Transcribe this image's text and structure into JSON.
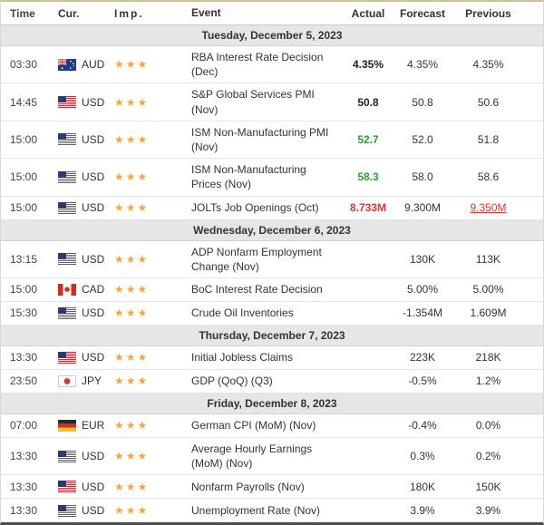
{
  "colors": {
    "positive": "#2aa12a",
    "negative": "#e03333",
    "star": "#f3a83c",
    "dateband": "#e6e6e6",
    "topborder": "#d8bf94"
  },
  "header": {
    "columns": [
      "Time",
      "Cur.",
      "Imp.",
      "Event",
      "Actual",
      "Forecast",
      "Previous"
    ]
  },
  "sections": [
    {
      "date_label": "Tuesday, December 5, 2023",
      "rows": [
        {
          "time": "03:30",
          "currency": "AUD",
          "flag": "au-flag",
          "importance": 3,
          "event": "RBA Interest Rate Decision (Dec)",
          "actual": "4.35%",
          "actual_style": "bold",
          "forecast": "4.35%",
          "previous": "4.35%",
          "previous_style": ""
        },
        {
          "time": "14:45",
          "currency": "USD",
          "flag": "us-flag",
          "importance": 3,
          "event": "S&P Global Services PMI (Nov)",
          "actual": "50.8",
          "actual_style": "bold",
          "forecast": "50.8",
          "previous": "50.6",
          "previous_style": ""
        },
        {
          "time": "15:00",
          "currency": "USD",
          "flag": "us-flag",
          "importance": 3,
          "event": "ISM Non-Manufacturing PMI (Nov)",
          "actual": "52.7",
          "actual_style": "positive",
          "forecast": "52.0",
          "previous": "51.8",
          "previous_style": ""
        },
        {
          "time": "15:00",
          "currency": "USD",
          "flag": "us-flag",
          "importance": 3,
          "event": "ISM Non-Manufacturing Prices (Nov)",
          "actual": "58.3",
          "actual_style": "positive",
          "forecast": "58.0",
          "previous": "58.6",
          "previous_style": ""
        },
        {
          "time": "15:00",
          "currency": "USD",
          "flag": "us-flag",
          "importance": 3,
          "event": "JOLTs Job Openings (Oct)",
          "actual": "8.733M",
          "actual_style": "negative",
          "forecast": "9.300M",
          "previous": "9.350M",
          "previous_style": "revised"
        }
      ]
    },
    {
      "date_label": "Wednesday, December 6, 2023",
      "rows": [
        {
          "time": "13:15",
          "currency": "USD",
          "flag": "us-flag",
          "importance": 3,
          "event": "ADP Nonfarm Employment Change (Nov)",
          "actual": "",
          "actual_style": "",
          "forecast": "130K",
          "previous": "113K",
          "previous_style": ""
        },
        {
          "time": "15:00",
          "currency": "CAD",
          "flag": "ca-flag",
          "importance": 3,
          "event": "BoC Interest Rate Decision",
          "actual": "",
          "actual_style": "",
          "forecast": "5.00%",
          "previous": "5.00%",
          "previous_style": ""
        },
        {
          "time": "15:30",
          "currency": "USD",
          "flag": "us-flag",
          "importance": 3,
          "event": "Crude Oil Inventories",
          "actual": "",
          "actual_style": "",
          "forecast": "-1.354M",
          "previous": "1.609M",
          "previous_style": ""
        }
      ]
    },
    {
      "date_label": "Thursday, December 7, 2023",
      "rows": [
        {
          "time": "13:30",
          "currency": "USD",
          "flag": "us-flag",
          "importance": 3,
          "event": "Initial Jobless Claims",
          "actual": "",
          "actual_style": "",
          "forecast": "223K",
          "previous": "218K",
          "previous_style": ""
        },
        {
          "time": "23:50",
          "currency": "JPY",
          "flag": "jp-flag",
          "importance": 3,
          "event": "GDP (QoQ) (Q3)",
          "actual": "",
          "actual_style": "",
          "forecast": "-0.5%",
          "previous": "1.2%",
          "previous_style": ""
        }
      ]
    },
    {
      "date_label": "Friday, December 8, 2023",
      "rows": [
        {
          "time": "07:00",
          "currency": "EUR",
          "flag": "de-flag",
          "importance": 3,
          "event": "German CPI (MoM) (Nov)",
          "actual": "",
          "actual_style": "",
          "forecast": "-0.4%",
          "previous": "0.0%",
          "previous_style": ""
        },
        {
          "time": "13:30",
          "currency": "USD",
          "flag": "us-flag",
          "importance": 3,
          "event": "Average Hourly Earnings (MoM) (Nov)",
          "actual": "",
          "actual_style": "",
          "forecast": "0.3%",
          "previous": "0.2%",
          "previous_style": ""
        },
        {
          "time": "13:30",
          "currency": "USD",
          "flag": "us-flag",
          "importance": 3,
          "event": "Nonfarm Payrolls (Nov)",
          "actual": "",
          "actual_style": "",
          "forecast": "180K",
          "previous": "150K",
          "previous_style": ""
        },
        {
          "time": "13:30",
          "currency": "USD",
          "flag": "us-flag",
          "importance": 3,
          "event": "Unemployment Rate (Nov)",
          "actual": "",
          "actual_style": "",
          "forecast": "3.9%",
          "previous": "3.9%",
          "previous_style": ""
        }
      ]
    }
  ]
}
